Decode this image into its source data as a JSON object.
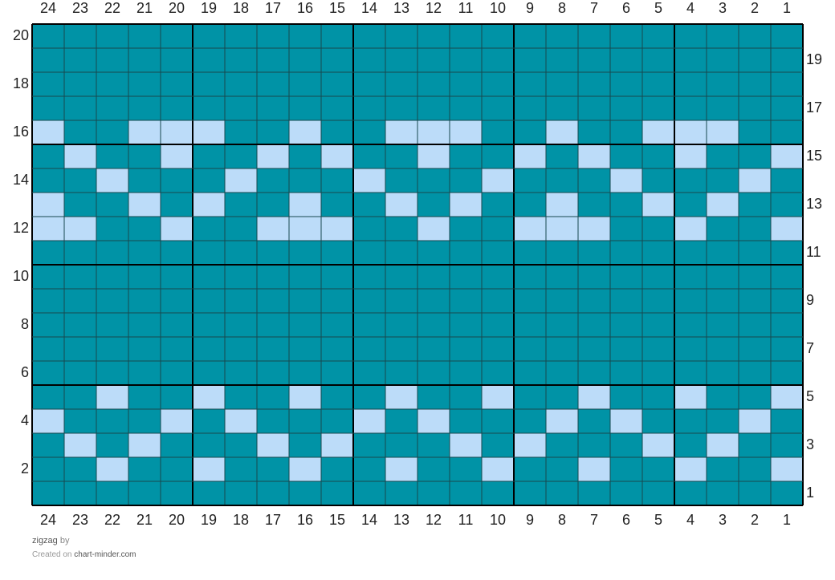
{
  "chart": {
    "cols": 24,
    "rows": 20,
    "colors": {
      "main": "#0093a6",
      "contrast": "#bcdcf9",
      "grid": "#17484f",
      "major": "#000000"
    },
    "major_every": 5,
    "row_patterns": {
      "16": [
        24,
        21,
        20,
        19,
        16,
        13,
        12,
        11,
        8,
        5,
        4,
        3
      ],
      "15": [
        23,
        20,
        17,
        15,
        12,
        9,
        7,
        4,
        1
      ],
      "14": [
        22,
        18,
        14,
        10,
        6,
        2
      ],
      "13": [
        24,
        21,
        19,
        16,
        13,
        11,
        8,
        5,
        3
      ],
      "12": [
        24,
        23,
        20,
        17,
        16,
        15,
        12,
        9,
        8,
        7,
        4,
        1
      ],
      "5": [
        22,
        19,
        16,
        13,
        10,
        7,
        4,
        1
      ],
      "4": [
        24,
        20,
        18,
        14,
        12,
        8,
        6,
        2
      ],
      "3": [
        23,
        21,
        17,
        15,
        11,
        9,
        5,
        3
      ],
      "2": [
        22,
        19,
        16,
        13,
        10,
        7,
        4,
        1
      ]
    },
    "top_col_labels": [
      "24",
      "23",
      "22",
      "21",
      "20",
      "19",
      "18",
      "17",
      "16",
      "15",
      "14",
      "13",
      "12",
      "11",
      "10",
      "9",
      "8",
      "7",
      "6",
      "5",
      "4",
      "3",
      "2",
      "1"
    ],
    "bottom_col_labels": [
      "24",
      "23",
      "22",
      "21",
      "20",
      "19",
      "18",
      "17",
      "16",
      "15",
      "14",
      "13",
      "12",
      "11",
      "10",
      "9",
      "8",
      "7",
      "6",
      "5",
      "4",
      "3",
      "2",
      "1"
    ],
    "left_row_labels": [
      "20",
      "18",
      "16",
      "14",
      "12",
      "10",
      "8",
      "6",
      "4",
      "2"
    ],
    "right_row_labels": [
      "19",
      "17",
      "15",
      "13",
      "11",
      "9",
      "7",
      "5",
      "3",
      "1"
    ]
  },
  "footer": {
    "title": "zigzag",
    "by": "by",
    "created_prefix": "Created on",
    "site": "chart-minder.com"
  }
}
